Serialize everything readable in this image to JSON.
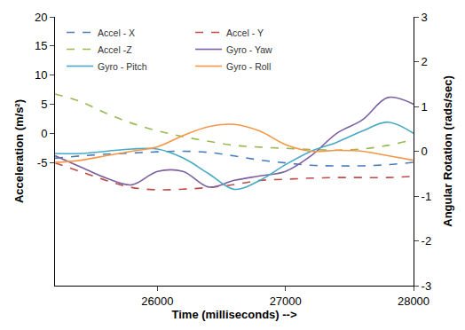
{
  "chart_data": {
    "type": "line",
    "x_label": "Time (milliseconds) -->",
    "y_label": "Acceleration (m/s²)",
    "y2_label": "Angular Rotation (rads/sec)",
    "x": [
      25200,
      25400,
      25600,
      25800,
      26000,
      26200,
      26400,
      26600,
      26800,
      27000,
      27200,
      27400,
      27600,
      27800,
      28000
    ],
    "series": [
      {
        "name": "Accel - X",
        "color": "#4a7ebb",
        "line_style": "dashed",
        "values": [
          -4.2,
          -3.8,
          -3.5,
          -3.3,
          -3.1,
          -3.0,
          -3.2,
          -3.8,
          -4.5,
          -5.0,
          -5.4,
          -5.5,
          -5.5,
          -5.3,
          -4.9
        ]
      },
      {
        "name": "Accel - Y",
        "color": "#be4b48",
        "line_style": "dashed",
        "values": [
          -5.0,
          -6.5,
          -8.0,
          -9.2,
          -9.6,
          -9.5,
          -9.2,
          -8.7,
          -8.0,
          -7.8,
          -7.6,
          -7.5,
          -7.5,
          -7.5,
          -7.3
        ]
      },
      {
        "name": "Accel -Z",
        "color": "#98b954",
        "line_style": "dashed",
        "values": [
          6.8,
          5.5,
          3.5,
          1.8,
          0.5,
          -0.5,
          -1.3,
          -2.0,
          -2.3,
          -2.5,
          -2.7,
          -2.8,
          -2.6,
          -2.0,
          -1.0
        ]
      },
      {
        "name": "Gyro - Yaw",
        "color": "#7d60a0",
        "line_style": "solid",
        "axis": "y2",
        "values": [
          -0.1,
          -0.35,
          -0.6,
          -0.75,
          -0.45,
          -0.45,
          -0.8,
          -0.65,
          -0.55,
          -0.45,
          -0.1,
          0.4,
          0.7,
          1.2,
          1.05
        ]
      },
      {
        "name": "Gyro - Pitch",
        "color": "#46aac5",
        "line_style": "solid",
        "axis": "y2",
        "values": [
          -0.05,
          -0.05,
          0.0,
          0.05,
          0.05,
          -0.15,
          -0.5,
          -0.85,
          -0.65,
          -0.3,
          0.0,
          0.2,
          0.45,
          0.65,
          0.4
        ]
      },
      {
        "name": "Gyro - Roll",
        "color": "#f79646",
        "line_style": "solid",
        "axis": "y2",
        "values": [
          -0.25,
          -0.2,
          -0.1,
          0.0,
          0.1,
          0.35,
          0.55,
          0.6,
          0.45,
          0.15,
          0.0,
          0.02,
          0.0,
          -0.1,
          -0.2
        ]
      }
    ],
    "xlim": [
      25200,
      28000
    ],
    "xticks": [
      26000,
      27000,
      28000
    ],
    "ylim": [
      -26,
      20
    ],
    "yticks": [
      -5,
      0,
      5,
      10,
      15,
      20
    ],
    "y2lim": [
      -3,
      3
    ],
    "y2ticks": [
      -3,
      -2,
      -1,
      0,
      1,
      2,
      3
    ],
    "grid": false,
    "legend": "top"
  }
}
